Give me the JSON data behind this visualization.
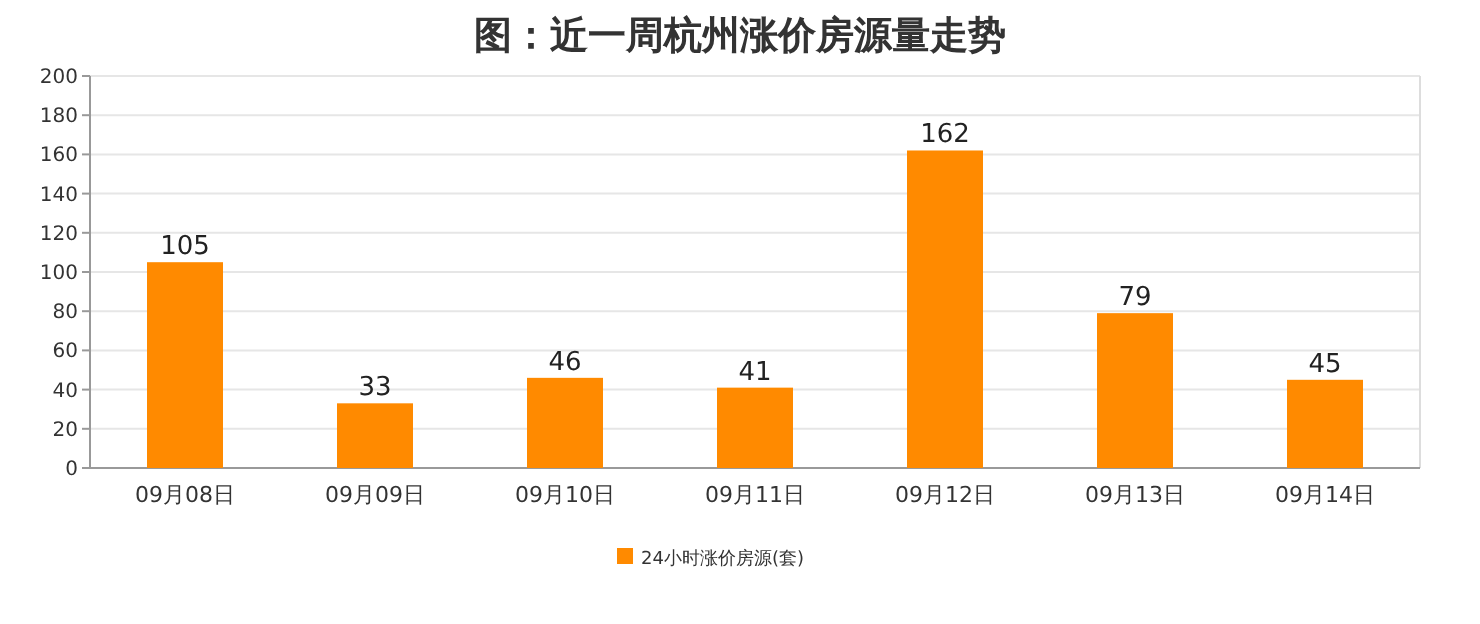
{
  "chart_data": {
    "type": "bar",
    "title": "图：近一周杭州涨价房源量走势",
    "categories": [
      "09月08日",
      "09月09日",
      "09月10日",
      "09月11日",
      "09月12日",
      "09月13日",
      "09月14日"
    ],
    "series": [
      {
        "name": "24小时涨价房源(套)",
        "color": "#ff8a00",
        "values": [
          105,
          33,
          46,
          41,
          162,
          79,
          45
        ]
      }
    ],
    "ylim": [
      0,
      200
    ],
    "yticks": [
      0,
      20,
      40,
      60,
      80,
      100,
      120,
      140,
      160,
      180,
      200
    ],
    "grid": "y",
    "legend": "bottom",
    "data_labels": true
  }
}
